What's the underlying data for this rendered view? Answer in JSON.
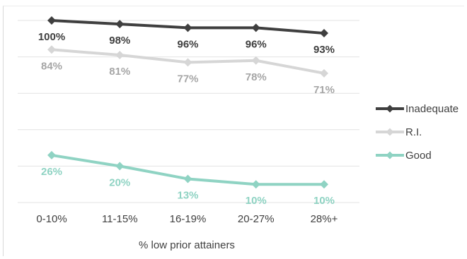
{
  "chart_data": {
    "type": "line",
    "title": "",
    "xlabel": "% low prior attainers",
    "ylabel": "",
    "categories": [
      "0-10%",
      "11-15%",
      "16-19%",
      "20-27%",
      "28%+"
    ],
    "ylim": [
      0,
      100
    ],
    "grid": true,
    "legend_position": "right",
    "series": [
      {
        "name": "Inadequate",
        "values": [
          100,
          98,
          96,
          96,
          93
        ],
        "labels": [
          "100%",
          "98%",
          "96%",
          "96%",
          "93%"
        ],
        "color": "#3f3f3f",
        "label_color": "#3f3f3f",
        "label_position": "below"
      },
      {
        "name": "R.I.",
        "values": [
          84,
          81,
          77,
          78,
          71
        ],
        "labels": [
          "84%",
          "81%",
          "77%",
          "78%",
          "71%"
        ],
        "color": "#d6d6d6",
        "label_color": "#a6a6a6",
        "label_position": "below"
      },
      {
        "name": "Good",
        "values": [
          26,
          20,
          13,
          10,
          10
        ],
        "labels": [
          "26%",
          "20%",
          "13%",
          "10%",
          "10%"
        ],
        "color": "#8fd3c3",
        "label_color": "#8fd3c3",
        "label_position": "below"
      }
    ]
  }
}
